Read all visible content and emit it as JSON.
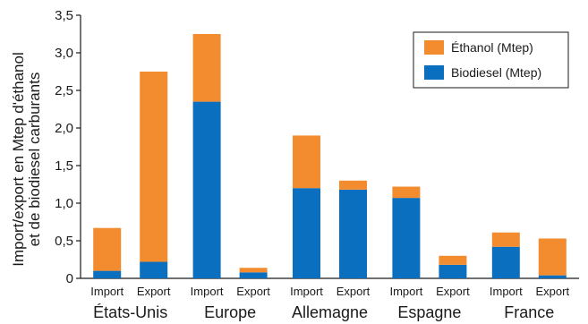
{
  "chart_data": {
    "type": "bar",
    "stacked": true,
    "ylabel": "Import/export en Mtep d'éthanol et de biodiesel carburants",
    "ylim": [
      0,
      3.5
    ],
    "yticks": [
      "0",
      "0,5",
      "1,0",
      "1,5",
      "2,0",
      "2,5",
      "3,0",
      "3,5"
    ],
    "grid": false,
    "legend_position": "top-right",
    "groups": [
      {
        "name": "États-Unis",
        "bars": [
          {
            "label": "Import",
            "biodiesel": 0.1,
            "ethanol": 0.57
          },
          {
            "label": "Export",
            "biodiesel": 0.22,
            "ethanol": 2.53
          }
        ]
      },
      {
        "name": "Europe",
        "bars": [
          {
            "label": "Import",
            "biodiesel": 2.35,
            "ethanol": 0.9
          },
          {
            "label": "Export",
            "biodiesel": 0.08,
            "ethanol": 0.06
          }
        ]
      },
      {
        "name": "Allemagne",
        "bars": [
          {
            "label": "Import",
            "biodiesel": 1.2,
            "ethanol": 0.7
          },
          {
            "label": "Export",
            "biodiesel": 1.18,
            "ethanol": 0.12
          }
        ]
      },
      {
        "name": "Espagne",
        "bars": [
          {
            "label": "Import",
            "biodiesel": 1.07,
            "ethanol": 0.15
          },
          {
            "label": "Export",
            "biodiesel": 0.18,
            "ethanol": 0.12
          }
        ]
      },
      {
        "name": "France",
        "bars": [
          {
            "label": "Import",
            "biodiesel": 0.42,
            "ethanol": 0.19
          },
          {
            "label": "Export",
            "biodiesel": 0.04,
            "ethanol": 0.49
          }
        ]
      }
    ],
    "series": [
      {
        "key": "ethanol",
        "name": "Éthanol (Mtep)",
        "color": "#f28c2f"
      },
      {
        "key": "biodiesel",
        "name": "Biodiesel (Mtep)",
        "color": "#0b6fbf"
      }
    ]
  }
}
